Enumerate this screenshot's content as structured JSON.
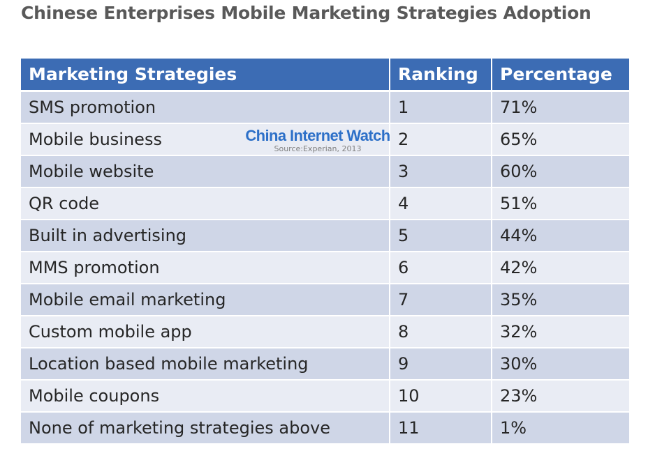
{
  "chart_data": {
    "type": "table",
    "title": "Chinese Enterprises Mobile Marketing Strategies Adoption",
    "columns": [
      "Marketing Strategies",
      "Ranking",
      "Percentage"
    ],
    "rows": [
      {
        "strategy": "SMS promotion",
        "ranking": "1",
        "percentage": "71%"
      },
      {
        "strategy": "Mobile business",
        "ranking": "2",
        "percentage": "65%"
      },
      {
        "strategy": "Mobile website",
        "ranking": "3",
        "percentage": "60%"
      },
      {
        "strategy": "QR code",
        "ranking": "4",
        "percentage": "51%"
      },
      {
        "strategy": "Built in advertising",
        "ranking": "5",
        "percentage": "44%"
      },
      {
        "strategy": "MMS promotion",
        "ranking": "6",
        "percentage": "42%"
      },
      {
        "strategy": "Mobile email marketing",
        "ranking": "7",
        "percentage": "35%"
      },
      {
        "strategy": "Custom mobile app",
        "ranking": "8",
        "percentage": "32%"
      },
      {
        "strategy": "Location based mobile marketing",
        "ranking": "9",
        "percentage": "30%"
      },
      {
        "strategy": "Mobile coupons",
        "ranking": "10",
        "percentage": "23%"
      },
      {
        "strategy": "None of marketing strategies above",
        "ranking": "11",
        "percentage": "1%"
      }
    ]
  },
  "watermark": {
    "brand": "China Internet Watch",
    "source": "Source:Experian, 2013"
  },
  "colors": {
    "header_bg": "#3c6cb4",
    "row_dark": "#cfd6e7",
    "row_light": "#e9ecf4",
    "title": "#595959",
    "watermark_brand": "#2d70c8"
  }
}
